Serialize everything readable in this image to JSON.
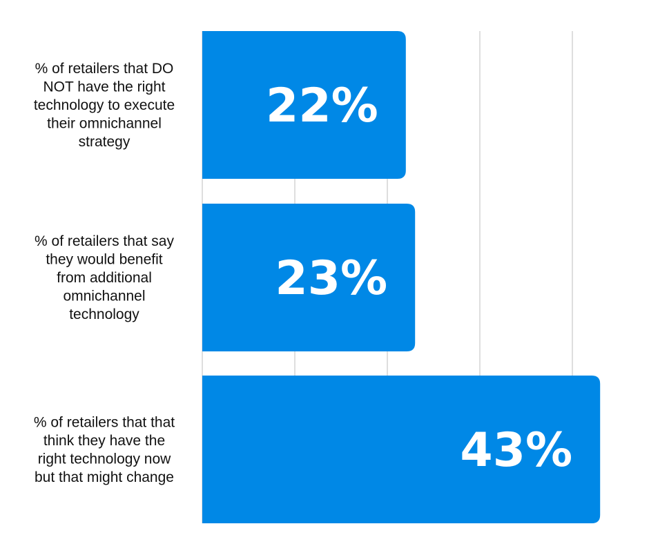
{
  "chart_data": {
    "type": "bar",
    "orientation": "horizontal",
    "categories": [
      [
        "% of retailers that DO",
        "NOT have the right",
        "technology to execute",
        "their omnichannel",
        "strategy"
      ],
      [
        "% of retailers that say",
        "they would benefit",
        "from additional",
        "omnichannel",
        "technology"
      ],
      [
        "% of retailers that that",
        "think they have the",
        "right technology now",
        "but that might change"
      ]
    ],
    "values": [
      22,
      23,
      43
    ],
    "value_labels": [
      "22%",
      "23%",
      "43%"
    ],
    "xlim": [
      0,
      45
    ],
    "grid": true,
    "bar_color": "#0088E6",
    "label_color": "#FFFFFF",
    "text_color": "#111111",
    "grid_color": "#D4D4D4"
  }
}
